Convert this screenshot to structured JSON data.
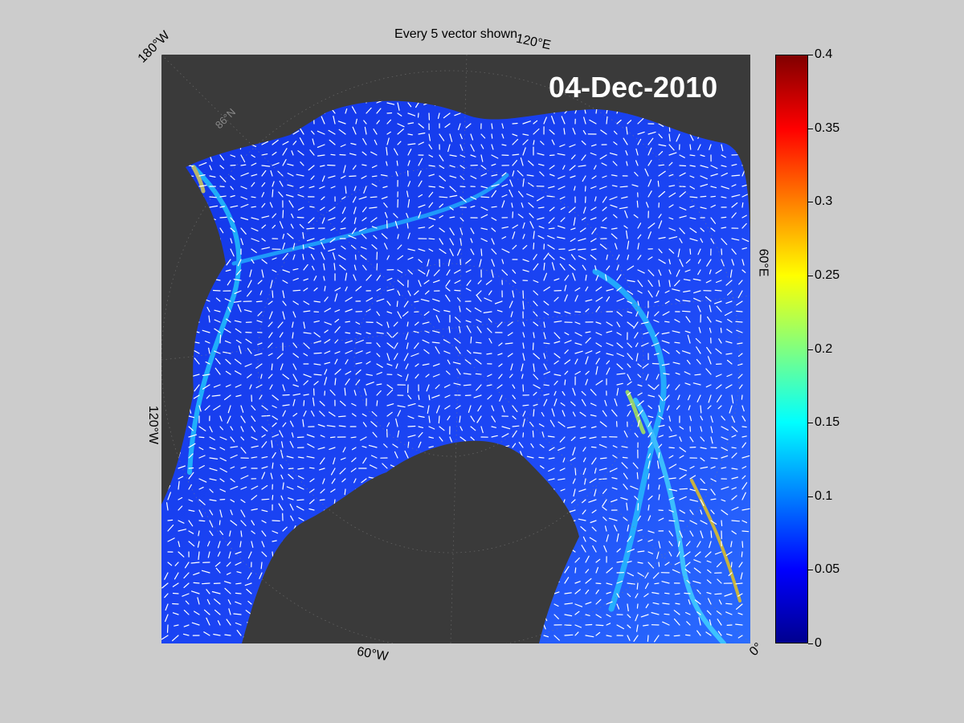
{
  "figure": {
    "title": "Every 5 vector shown",
    "date": "04-Dec-2010"
  },
  "graticule_labels": {
    "lon_180w": "180°W",
    "lon_120e": "120°E",
    "lon_60e": "60°E",
    "lon_120w": "120°W",
    "lon_60w": "60°W",
    "lon_0": "0°",
    "lat_86n": "86°N"
  },
  "colorbar": {
    "min": 0,
    "max": 0.4,
    "colormap": "jet",
    "ticks": [
      "0",
      "0.05",
      "0.1",
      "0.15",
      "0.2",
      "0.25",
      "0.3",
      "0.35",
      "0.4"
    ],
    "tick_values": [
      0,
      0.05,
      0.1,
      0.15,
      0.2,
      0.25,
      0.3,
      0.35,
      0.4
    ]
  },
  "colors": {
    "ocean": "#1a3cf0",
    "land": "#3a3a3a",
    "outside": "#7a7a7a",
    "vectors": "#ffffff",
    "background": "#cccccc"
  }
}
